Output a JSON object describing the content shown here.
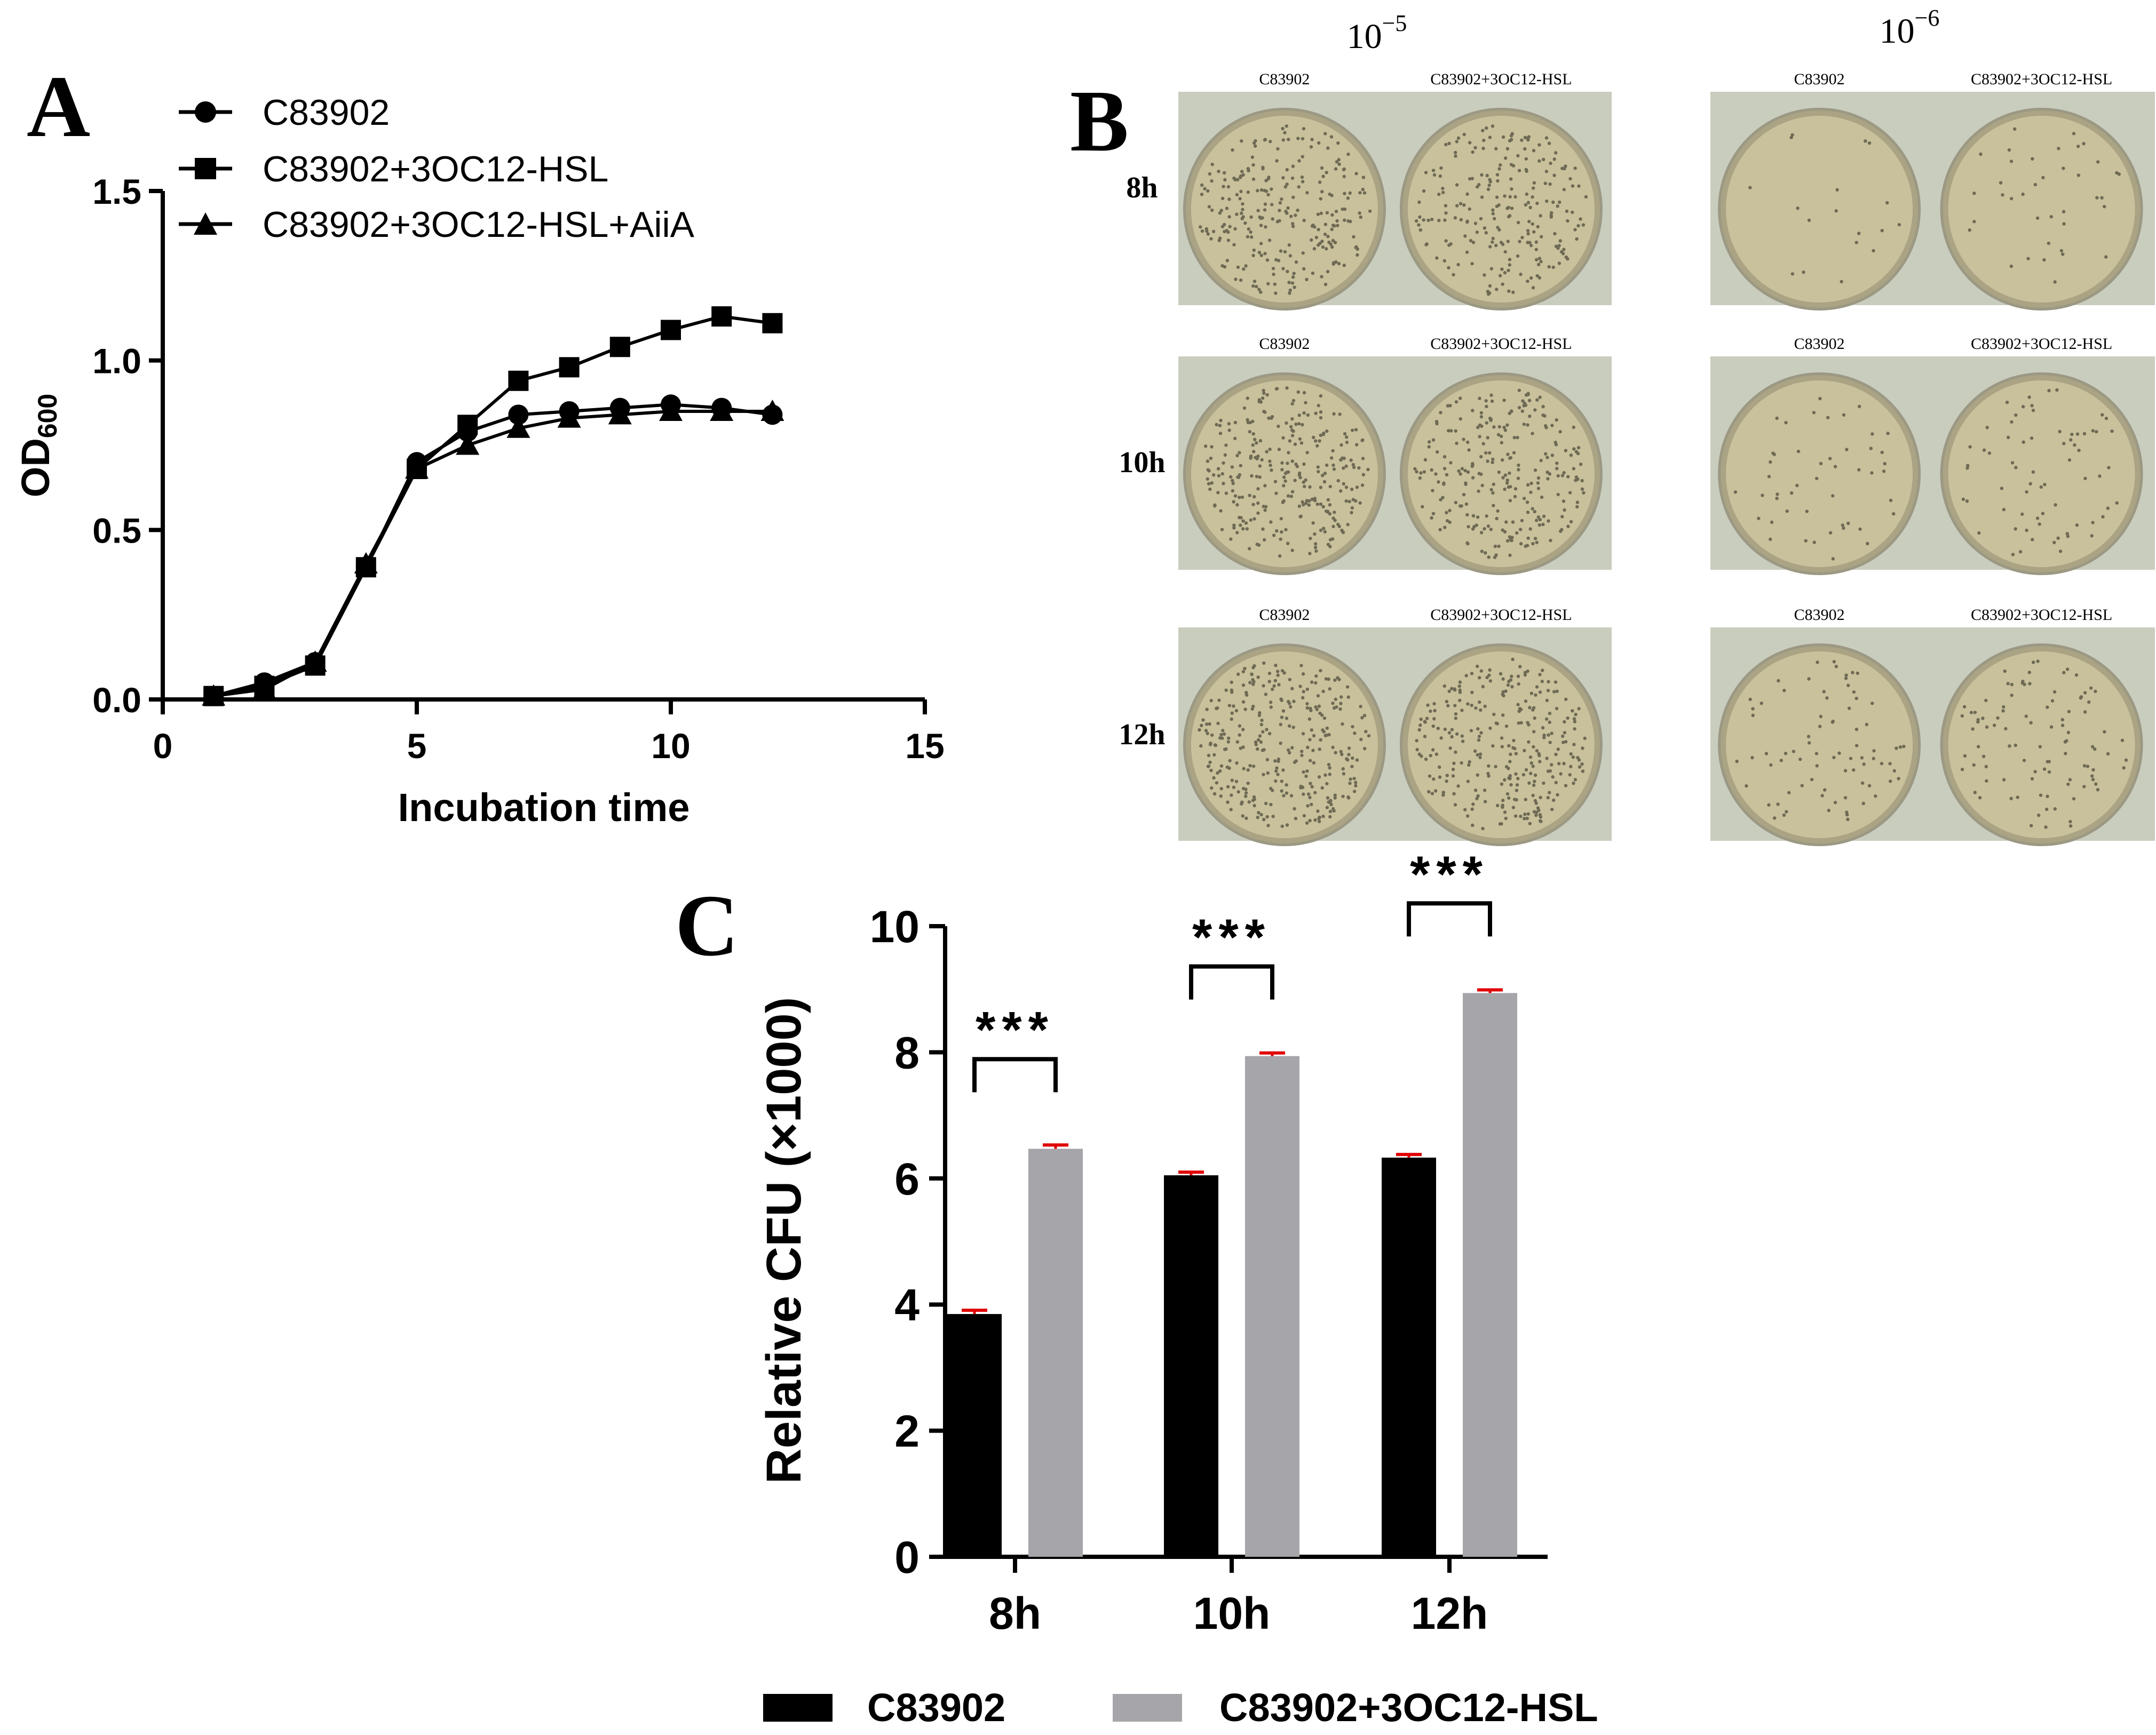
{
  "chart_data": [
    {
      "panel": "A",
      "type": "line",
      "xlabel": "Incubation time",
      "ylabel_main": "OD",
      "ylabel_sub": "600",
      "xlim": [
        0,
        15
      ],
      "ylim": [
        0,
        1.5
      ],
      "xticks": [
        "0",
        "5",
        "10",
        "15"
      ],
      "yticks": [
        "0.0",
        "0.5",
        "1.0",
        "1.5"
      ],
      "x": [
        1,
        2,
        3,
        4,
        5,
        6,
        7,
        8,
        9,
        10,
        11,
        12
      ],
      "series": [
        {
          "name": "C83902",
          "marker": "circle",
          "values": [
            0.01,
            0.05,
            0.11,
            0.39,
            0.7,
            0.79,
            0.84,
            0.85,
            0.86,
            0.87,
            0.86,
            0.84
          ]
        },
        {
          "name": "C83902+3OC12-HSL",
          "marker": "square",
          "values": [
            0.01,
            0.04,
            0.1,
            0.39,
            0.68,
            0.81,
            0.94,
            0.98,
            1.04,
            1.09,
            1.13,
            1.11
          ]
        },
        {
          "name": "C83902+3OC12-HSL+AiiA",
          "marker": "triangle",
          "values": [
            0.01,
            0.03,
            0.11,
            0.4,
            0.68,
            0.75,
            0.8,
            0.83,
            0.84,
            0.85,
            0.85,
            0.85
          ]
        }
      ]
    },
    {
      "panel": "C",
      "type": "bar",
      "xlabel": "",
      "ylabel": "Relative CFU (×1000)",
      "ylim": [
        0,
        10
      ],
      "yticks": [
        "0",
        "2",
        "4",
        "6",
        "8",
        "10"
      ],
      "categories": [
        "8h",
        "10h",
        "12h"
      ],
      "series": [
        {
          "name": "C83902",
          "color": "#000000",
          "values": [
            3.85,
            6.05,
            6.33
          ],
          "errors": [
            0.06,
            0.05,
            0.05
          ]
        },
        {
          "name": "C83902+3OC12-HSL",
          "color": "#a5a5aa",
          "values": [
            6.47,
            7.94,
            8.94
          ],
          "errors": [
            0.06,
            0.05,
            0.05
          ]
        }
      ],
      "significance": [
        "***",
        "***",
        "***"
      ],
      "legend_position": "bottom"
    }
  ],
  "panel_labels": {
    "a": "A",
    "b": "B",
    "c": "C"
  },
  "plates": {
    "dilutions": [
      {
        "base": "10",
        "exp": "−5"
      },
      {
        "base": "10",
        "exp": "−6"
      }
    ],
    "times": [
      "8h",
      "10h",
      "12h"
    ],
    "plate_labels": [
      "C83902",
      "C83902+3OC12-HSL"
    ]
  },
  "colors": {
    "plate_bg": "#c9cdbe",
    "agar": "#c8c19b",
    "error_bar": "#e00000",
    "grey_bar": "#a5a5aa"
  }
}
